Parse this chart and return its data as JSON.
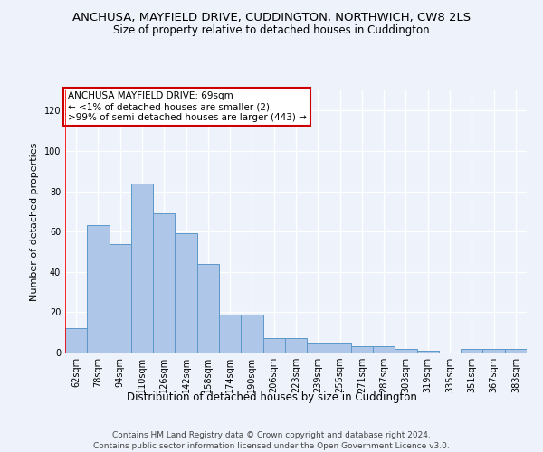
{
  "title": "ANCHUSA, MAYFIELD DRIVE, CUDDINGTON, NORTHWICH, CW8 2LS",
  "subtitle": "Size of property relative to detached houses in Cuddington",
  "xlabel": "Distribution of detached houses by size in Cuddington",
  "ylabel": "Number of detached properties",
  "bar_labels": [
    "62sqm",
    "78sqm",
    "94sqm",
    "110sqm",
    "126sqm",
    "142sqm",
    "158sqm",
    "174sqm",
    "190sqm",
    "206sqm",
    "223sqm",
    "239sqm",
    "255sqm",
    "271sqm",
    "287sqm",
    "303sqm",
    "319sqm",
    "335sqm",
    "351sqm",
    "367sqm",
    "383sqm"
  ],
  "bar_values": [
    12,
    63,
    54,
    84,
    69,
    59,
    44,
    19,
    19,
    7,
    7,
    5,
    5,
    3,
    3,
    2,
    1,
    0,
    2,
    2,
    2
  ],
  "bar_color": "#aec6e8",
  "bar_edge_color": "#5b97c9",
  "background_color": "#eef3fb",
  "grid_color": "#ffffff",
  "annotation_text": "ANCHUSA MAYFIELD DRIVE: 69sqm\n← <1% of detached houses are smaller (2)\n>99% of semi-detached houses are larger (443) →",
  "annotation_box_color": "#ffffff",
  "annotation_box_edge": "#cc0000",
  "ylim": [
    0,
    130
  ],
  "yticks": [
    0,
    20,
    40,
    60,
    80,
    100,
    120
  ],
  "footer_line1": "Contains HM Land Registry data © Crown copyright and database right 2024.",
  "footer_line2": "Contains public sector information licensed under the Open Government Licence v3.0.",
  "title_fontsize": 9.5,
  "subtitle_fontsize": 8.5,
  "xlabel_fontsize": 8.5,
  "ylabel_fontsize": 8,
  "tick_fontsize": 7,
  "annotation_fontsize": 7.5,
  "footer_fontsize": 6.5
}
